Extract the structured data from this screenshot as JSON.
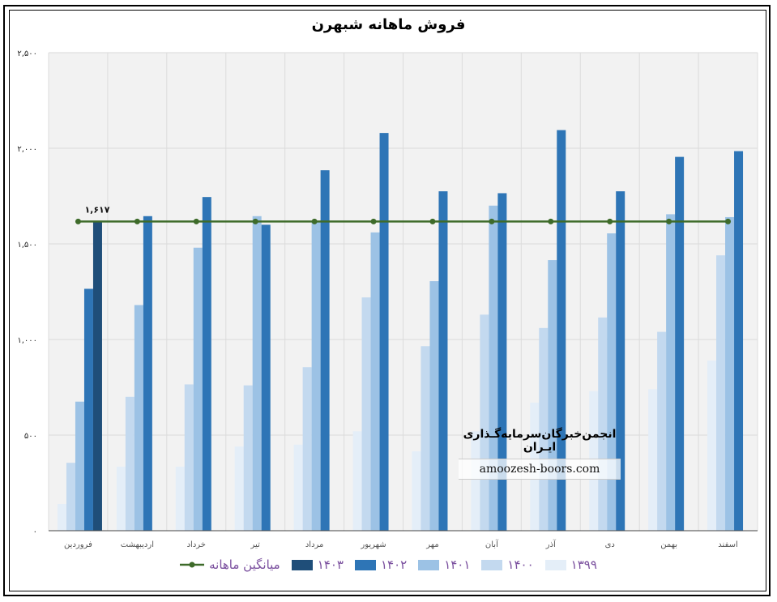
{
  "chart_data": {
    "type": "bar",
    "title": "فروش ماهانه شبهرن",
    "categories": [
      "فروردین",
      "اردیبهشت",
      "خرداد",
      "تیر",
      "مرداد",
      "شهریور",
      "مهر",
      "آبان",
      "آذر",
      "دی",
      "بهمن",
      "اسفند"
    ],
    "series": [
      {
        "name": "۱۳۹۹",
        "color": "#e4eef8",
        "values": [
          140,
          335,
          335,
          440,
          450,
          520,
          415,
          520,
          670,
          730,
          740,
          890
        ]
      },
      {
        "name": "۱۴۰۰",
        "color": "#c3d9ef",
        "values": [
          355,
          700,
          765,
          760,
          855,
          1220,
          965,
          1130,
          1060,
          1115,
          1040,
          1440
        ]
      },
      {
        "name": "۱۴۰۱",
        "color": "#9cc2e5",
        "values": [
          675,
          1180,
          1480,
          1645,
          1615,
          1560,
          1305,
          1700,
          1415,
          1555,
          1655,
          1640
        ]
      },
      {
        "name": "۱۴۰۲",
        "color": "#2e75b6",
        "values": [
          1265,
          1645,
          1745,
          1600,
          1885,
          2080,
          1775,
          1765,
          2095,
          1775,
          1955,
          1985
        ]
      },
      {
        "name": "۱۴۰۳",
        "color": "#1f4e79",
        "values": [
          1617,
          null,
          null,
          null,
          null,
          null,
          null,
          null,
          null,
          null,
          null,
          null
        ]
      }
    ],
    "average": {
      "name": "میانگین ماهانه",
      "color": "#3e6b2a",
      "value": 1617,
      "label": "۱,۶۱۷"
    },
    "ylim": [
      0,
      2500
    ],
    "yticks": [
      {
        "v": 0,
        "label": "۰"
      },
      {
        "v": 500,
        "label": "۵۰۰"
      },
      {
        "v": 1000,
        "label": "۱,۰۰۰"
      },
      {
        "v": 1500,
        "label": "۱,۵۰۰"
      },
      {
        "v": 2000,
        "label": "۲,۰۰۰"
      },
      {
        "v": 2500,
        "label": "۲,۵۰۰"
      }
    ],
    "grid": true,
    "legend": "bottom"
  },
  "watermark": {
    "title": "انجمن‌خبرگان‌سرمایه‌گـذاری ایـران",
    "url": "amoozesh-boors.com"
  }
}
